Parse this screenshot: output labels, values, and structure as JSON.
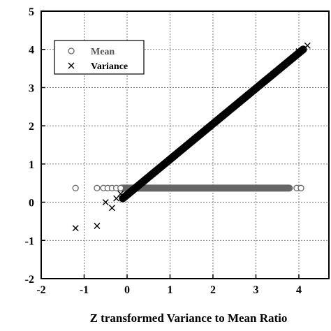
{
  "chart_data": {
    "type": "scatter",
    "xlabel": "Z transformed Variance to Mean Ratio",
    "ylabel": "",
    "xlim": [
      -2,
      4.7
    ],
    "ylim": [
      -2,
      5
    ],
    "x_ticks": [
      "-2",
      "-1",
      "0",
      "1",
      "2",
      "3",
      "4"
    ],
    "y_ticks": [
      "-2",
      "-1",
      "0",
      "1",
      "2",
      "3",
      "4",
      "5"
    ],
    "grid": true,
    "grid_style": "dotted",
    "legend_position": "top-left",
    "series": [
      {
        "name": "Mean",
        "marker": "circle",
        "color": "#666666",
        "points": [
          [
            -1.2,
            0.37
          ],
          [
            -0.7,
            0.37
          ],
          [
            -0.55,
            0.37
          ],
          [
            -0.45,
            0.37
          ],
          [
            -0.35,
            0.37
          ],
          [
            -0.25,
            0.37
          ],
          [
            -0.15,
            0.37
          ],
          [
            3.95,
            0.37
          ],
          [
            4.05,
            0.37
          ]
        ],
        "band": {
          "x_from": -0.2,
          "x_to": 3.85,
          "y": 0.37
        }
      },
      {
        "name": "Variance",
        "marker": "x",
        "color": "#000000",
        "points": [
          [
            -1.2,
            -0.68
          ],
          [
            -0.7,
            -0.62
          ],
          [
            -0.5,
            0.0
          ],
          [
            -0.35,
            -0.15
          ],
          [
            -0.25,
            0.1
          ],
          [
            -0.15,
            0.22
          ],
          [
            4.0,
            3.95
          ],
          [
            4.2,
            4.1
          ]
        ],
        "band": {
          "x_from": -0.1,
          "x_to": 4.1,
          "y_from": 0.1,
          "y_to": 4.0
        }
      }
    ]
  }
}
